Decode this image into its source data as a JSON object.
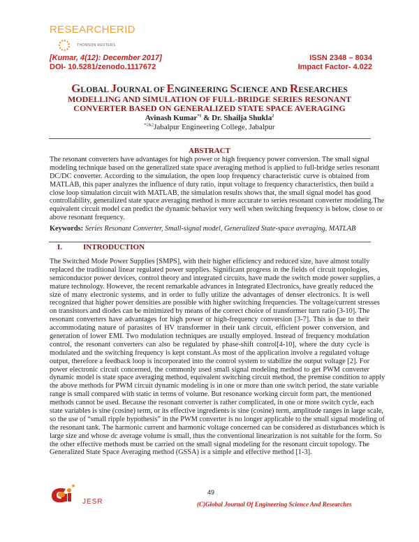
{
  "header": {
    "researcherid_logo": "RESEARCHERID",
    "thomson_reuters": "THOMSON REUTERS",
    "citation": "[Kumar, 4(12): December 2017]",
    "doi": "DOI- 10.5281/zenodo.1117672",
    "issn": "ISSN 2348 – 8034",
    "impact_factor": "Impact Factor- 4.022"
  },
  "journal_title": {
    "words": [
      {
        "cap": "G",
        "rest": "LOBAL "
      },
      {
        "cap": "J",
        "rest": "OURNAL OF "
      },
      {
        "cap": "E",
        "rest": "NGINEERING "
      },
      {
        "cap": "S",
        "rest": "CIENCE AND "
      },
      {
        "cap": "R",
        "rest": "ESEARCHES"
      }
    ]
  },
  "paper": {
    "title_lines": [
      "MODELLING AND SIMULATION OF FULL-BRIDGE SERIES RESONANT",
      "CONVERTER BASED ON GENERALIZED STATE SPACE AVERAGING"
    ],
    "author1": "Avinash Kumar",
    "author1_sup": "*1",
    "and": " & ",
    "author2": "Dr. Shailja Shukla",
    "author2_sup": "2",
    "affiliation_sup": "*1&2",
    "affiliation": "Jabalpur Engineering College, Jabalpur"
  },
  "abstract": {
    "heading": "ABSTRACT",
    "lines": [
      "The resonant converters have advantages for high power or high frequency power conversion. The small signal",
      "modeling technique based on the generalized state space averaging method is applied to full-bridge series resonant",
      "DC/DC converter. According to the simulation, the open loop frequency characteristic curve is obtained from",
      "MATLAB, this paper analyzes the influence of duty ratio, input voltage to frequency characteristics, then build a",
      "close loop simulation circuit with MATLAB, the simulation results shows that, the small signal model has good",
      "controllability, generalized state space averaging method is more accurate to series resonant converter modeling.The",
      "equivalent circuit model can predict the dynamic behavior very well when switching frequency is below, close to or",
      "above resonant frequency."
    ],
    "keywords_label": "Keywords:",
    "keywords": " Series Resonant Converter, Small-signal model, Generalized State-space averaging, MATLAB"
  },
  "introduction": {
    "number": "I.",
    "heading": "INTRODUCTION",
    "lines": [
      "The Switched Mode Power Supplies [SMPS], with their higher efficiency and reduced size, have almost totally",
      "replaced the traditional linear regulated power supplies. Significant progress in the fields of circuit topologies,",
      "semiconductor power devices, control theory and integrated circuits, have made the switch mode power supplies, a",
      "mature technology. However, the recent remarkable advances in Integrated Electronics, have greatly reduced the",
      "size of many electronic systems, and in order to fully utilize the advantages of denser electronics. It is well",
      "recognized that higher power densities are possible with higher switching frequencies. The voltage/current stresses",
      "on transistors and diodes can be minimized by means of the correct choice of transformer turn ratio [3-10]. The",
      "resonant converters have advantages for high power or high-frequency conversion [3-7]. This is due to their",
      "accommodating nature of parasites of HV transformer in their tank circuit, efficient power conversion, and",
      "generation of lower EMI. Two modulation techniques are usually employed. Instead of frequency modulation",
      "control, the resonant converters can also be regulated by phase-shift control[4-10], where the duty cycle is",
      "modulated and the switching frequency is kept constant.As most of the application involve a regulated voltage",
      "output, therefore a feedback loop is incorporated into the control system to stabilize the output voltage [2]. For",
      "power electronic circuit concerned, the commonly used small signal modeling method to get PWM converter",
      "dynamic model is state space averaging method, equivalent switching circuit method, the premise condition to apply",
      "the above methods for PWM circuit dynamic modeling is in one or more than one switch period, the state variable",
      "range is small compared with static in terms of volume. But resonance working circuit form part, the mentioned",
      "methods cannot be used. Because the resonant converter is rather complicated, in one or more switch cycle, each",
      "state variables is sine (cosine) term, or its effective ingredients is sine (cosine) term, amplitude ranges in large scale,",
      "so the use of “small ripple hypothesis” in the PWM converter is no longer applicable to the small signal modeling of",
      "the resonant tank. The harmonic current and harmonic voltage concerned can be considered as disturbances which is",
      "large size and whose dc average volume is small, thus the conventional linearization is not suitable for the form. So",
      "the other effective methods must be carried on the small signal modeling for the resonant circuit topology. The",
      "Generalized State Space Averaging method (GSSA) is a simple and effective method [1-3]."
    ]
  },
  "footer": {
    "page_number": "49",
    "logo_text": "JESR",
    "copyright": "(C)Global Journal Of Engineering Science And Researches"
  },
  "colors": {
    "accent_red": "#c0201e",
    "heading_maroon": "#7a1a1a",
    "researcherid_orange": "#f0a030"
  }
}
